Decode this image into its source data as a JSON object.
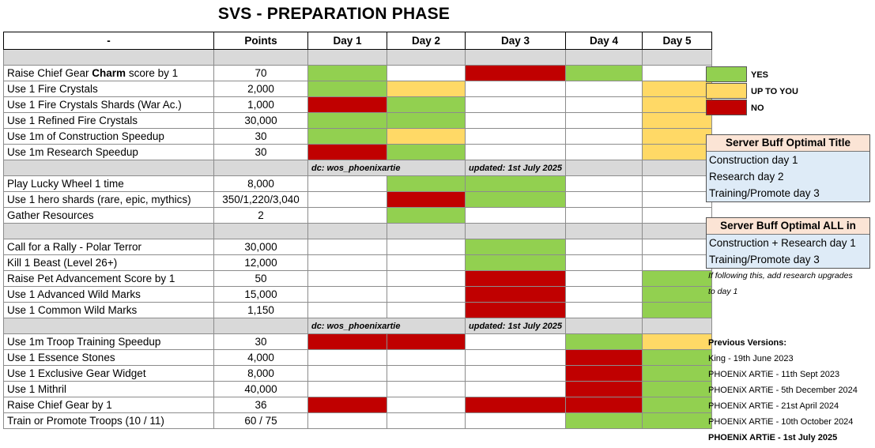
{
  "title": "SVS - PREPARATION PHASE",
  "header": {
    "task": "-",
    "points": "Points",
    "days": [
      "Day 1",
      "Day 2",
      "Day 3",
      "Day 4",
      "Day 5"
    ]
  },
  "rows": [
    {
      "kind": "sep"
    },
    {
      "kind": "task",
      "task_pre": "Raise Chief Gear ",
      "task_bold": "Charm",
      "task_post": " score by 1",
      "points": "70",
      "cells": [
        "G",
        "W",
        "R",
        "G",
        "W"
      ]
    },
    {
      "kind": "task",
      "task": "Use 1 Fire Crystals",
      "points": "2,000",
      "cells": [
        "G",
        "Y",
        "W",
        "W",
        "Y"
      ]
    },
    {
      "kind": "task",
      "task": "Use 1 Fire Crystals Shards (War Ac.)",
      "points": "1,000",
      "cells": [
        "R",
        "G",
        "W",
        "W",
        "Y"
      ]
    },
    {
      "kind": "task",
      "task": "Use 1 Refined Fire Crystals",
      "points": "30,000",
      "cells": [
        "G",
        "G",
        "W",
        "W",
        "Y"
      ]
    },
    {
      "kind": "task",
      "task": "Use 1m of Construction Speedup",
      "points": "30",
      "cells": [
        "G",
        "Y",
        "W",
        "W",
        "Y"
      ]
    },
    {
      "kind": "task",
      "task": "Use 1m Research Speedup",
      "points": "30",
      "cells": [
        "R",
        "G",
        "W",
        "W",
        "Y"
      ]
    },
    {
      "kind": "sep",
      "credit": "dc: wos_phoenixartie",
      "updated": "updated: 1st July 2025"
    },
    {
      "kind": "task",
      "task": "Play Lucky Wheel 1 time",
      "points": "8,000",
      "cells": [
        "W",
        "G",
        "G",
        "W",
        "W"
      ]
    },
    {
      "kind": "task",
      "task": "Use 1 hero shards (rare, epic, mythics)",
      "points": "350/1,220/3,040",
      "cells": [
        "W",
        "R",
        "G",
        "W",
        "W"
      ]
    },
    {
      "kind": "task",
      "task": "Gather Resources",
      "points": "2",
      "cells": [
        "W",
        "G",
        "W",
        "W",
        "W"
      ]
    },
    {
      "kind": "sep"
    },
    {
      "kind": "task",
      "task": "Call for a Rally - Polar Terror",
      "points": "30,000",
      "cells": [
        "W",
        "W",
        "G",
        "W",
        "W"
      ]
    },
    {
      "kind": "task",
      "task": "Kill 1 Beast (Level 26+)",
      "points": "12,000",
      "cells": [
        "W",
        "W",
        "G",
        "W",
        "W"
      ]
    },
    {
      "kind": "task",
      "task": "Raise Pet Advancement Score by 1",
      "points": "50",
      "cells": [
        "W",
        "W",
        "R",
        "W",
        "G"
      ]
    },
    {
      "kind": "task",
      "task": "Use 1 Advanced Wild Marks",
      "points": "15,000",
      "cells": [
        "W",
        "W",
        "R",
        "W",
        "G"
      ]
    },
    {
      "kind": "task",
      "task": "Use 1 Common Wild Marks",
      "points": "1,150",
      "cells": [
        "W",
        "W",
        "R",
        "W",
        "G"
      ]
    },
    {
      "kind": "sep",
      "credit": "dc: wos_phoenixartie",
      "updated": "updated: 1st July 2025"
    },
    {
      "kind": "task",
      "task": "Use 1m Troop Training Speedup",
      "points": "30",
      "cells": [
        "R",
        "R",
        "W",
        "G",
        "Y"
      ]
    },
    {
      "kind": "task",
      "task": "Use 1 Essence Stones",
      "points": "4,000",
      "cells": [
        "W",
        "W",
        "W",
        "R",
        "G"
      ]
    },
    {
      "kind": "task",
      "task": "Use 1 Exclusive Gear Widget",
      "points": "8,000",
      "cells": [
        "W",
        "W",
        "W",
        "R",
        "G"
      ]
    },
    {
      "kind": "task",
      "task": "Use 1 Mithril",
      "points": "40,000",
      "cells": [
        "W",
        "W",
        "W",
        "R",
        "G"
      ]
    },
    {
      "kind": "task",
      "task": "Raise Chief Gear by 1",
      "points": "36",
      "cells": [
        "R",
        "W",
        "R",
        "R",
        "G"
      ]
    },
    {
      "kind": "task",
      "task": "Train or Promote Troops (10 / 11)",
      "points": "60 / 75",
      "cells": [
        "W",
        "W",
        "W",
        "G",
        "G"
      ]
    }
  ],
  "legend": [
    {
      "label": "YES",
      "color": "#92d050"
    },
    {
      "label": "UP TO YOU",
      "color": "#ffd966"
    },
    {
      "label": "NO",
      "color": "#c00000"
    }
  ],
  "buff_title": {
    "heading": "Server Buff Optimal Title",
    "lines": [
      "Construction day 1",
      "Research day 2",
      "Training/Promote day 3"
    ]
  },
  "buff_all": {
    "heading": "Server Buff Optimal ALL in",
    "lines": [
      "Construction + Research day 1",
      "Training/Promote day 3"
    ]
  },
  "note_lines": [
    "If following this, add research upgrades",
    "to day 1"
  ],
  "versions": {
    "heading": "Previous Versions:",
    "items": [
      "King - 19th June 2023",
      "PHOENiX ARTiE - 11th Sept 2023",
      "PHOENiX ARTiE - 5th December 2024",
      "PHOENiX ARTiE - 21st April 2024",
      "PHOENiX ARTiE - 10th October 2024",
      "PHOENiX ARTiE - 1st July 2025"
    ]
  }
}
